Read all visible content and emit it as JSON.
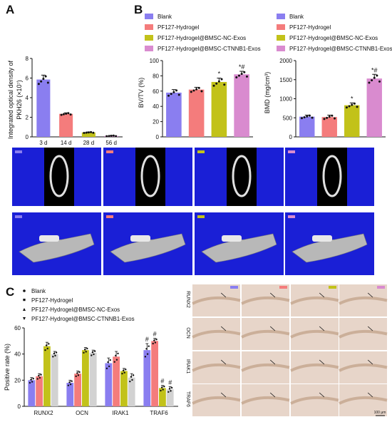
{
  "panels": {
    "a": "A",
    "b": "B",
    "c": "C"
  },
  "colors": {
    "blank": "#8a7ef0",
    "hydrogel": "#f47c7c",
    "nc": "#c2c21a",
    "ctnnb1": "#d98bcf",
    "c_last": "#d2d2d2",
    "ct_bg": "#1a1fd6",
    "histo": "#e7d5c9"
  },
  "legend_b": [
    "Blank",
    "PF127-Hydrogel",
    "PF127-Hydrogel@BMSC-NC-Exos",
    "PF127-Hydrogel@BMSC-CTNNB1-Exos"
  ],
  "legend_c": [
    "Blank",
    "PF127-Hydrogel",
    "PF127-Hydrogel@BMSC-NC-Exos",
    "PF127-Hydrogel@BMSC-CTNNB1-Exos"
  ],
  "stain_labels": [
    "RUNX2",
    "OCN",
    "IRAK1",
    "TRAF6"
  ],
  "scale_bar": "100 μm",
  "chart_data": [
    {
      "id": "A",
      "type": "bar",
      "categories": [
        "3 d",
        "14 d",
        "28 d",
        "56 d"
      ],
      "values": [
        5.85,
        2.35,
        0.45,
        0.1
      ],
      "errors": [
        0.45,
        0.1,
        0.05,
        0.04
      ],
      "ylabel_line1": "Integrated optical density of",
      "ylabel_line2": "PKH26 (×10⁷)",
      "ylim": [
        0,
        8
      ],
      "yticks": [
        0,
        2,
        4,
        6,
        8
      ],
      "colors": [
        "#8a7ef0",
        "#f47c7c",
        "#c2c21a",
        "#d98bcf"
      ]
    },
    {
      "id": "B1",
      "type": "bar",
      "categories": [
        "Blank",
        "PF127-Hydrogel",
        "PF127-Hydrogel@BMSC-NC-Exos",
        "PF127-Hydrogel@BMSC-CTNNB1-Exos"
      ],
      "values": [
        58,
        62,
        72,
        82
      ],
      "errors": [
        4,
        3,
        5,
        4
      ],
      "annotations": [
        "",
        "",
        "*",
        "*#"
      ],
      "ylabel": "BV/TV (%)",
      "ylim": [
        0,
        100
      ],
      "yticks": [
        0,
        20,
        40,
        60,
        80,
        100
      ],
      "colors": [
        "#8a7ef0",
        "#f47c7c",
        "#c2c21a",
        "#d98bcf"
      ]
    },
    {
      "id": "B2",
      "type": "bar",
      "categories": [
        "Blank",
        "PF127-Hydrogel",
        "PF127-Hydrogel@BMSC-NC-Exos",
        "PF127-Hydrogel@BMSC-CTNNB1-Exos"
      ],
      "values": [
        530,
        520,
        830,
        1530
      ],
      "errors": [
        40,
        50,
        60,
        110
      ],
      "annotations": [
        "",
        "",
        "*",
        "*#"
      ],
      "ylabel": "BMD (mg/cm³)",
      "ylim": [
        0,
        2000
      ],
      "yticks": [
        0,
        500,
        1000,
        1500,
        2000
      ],
      "colors": [
        "#8a7ef0",
        "#f47c7c",
        "#c2c21a",
        "#d98bcf"
      ]
    },
    {
      "id": "C",
      "type": "bar",
      "categories": [
        "RUNX2",
        "OCN",
        "IRAK1",
        "TRAF6"
      ],
      "series": [
        {
          "values": [
            20,
            18,
            33,
            43
          ],
          "errors": [
            2,
            2,
            4,
            5
          ]
        },
        {
          "values": [
            23,
            25,
            38,
            50
          ],
          "errors": [
            2,
            2,
            4,
            2
          ]
        },
        {
          "values": [
            46,
            43,
            27,
            14
          ],
          "errors": [
            3,
            2,
            2,
            2
          ]
        },
        {
          "values": [
            40,
            41,
            22,
            13
          ],
          "errors": [
            2,
            2,
            3,
            2
          ]
        }
      ],
      "annotations": [
        [
          "",
          "",
          "",
          "#"
        ],
        [
          "",
          "",
          "",
          "#"
        ],
        [
          "",
          "",
          "",
          "#"
        ],
        [
          "",
          "",
          "",
          "#"
        ]
      ],
      "ylabel": "Positive rate (%)",
      "ylim": [
        0,
        60
      ],
      "yticks": [
        0,
        20,
        40,
        60
      ],
      "colors": [
        "#8a7ef0",
        "#f47c7c",
        "#c2c21a",
        "#d2d2d2"
      ]
    }
  ]
}
